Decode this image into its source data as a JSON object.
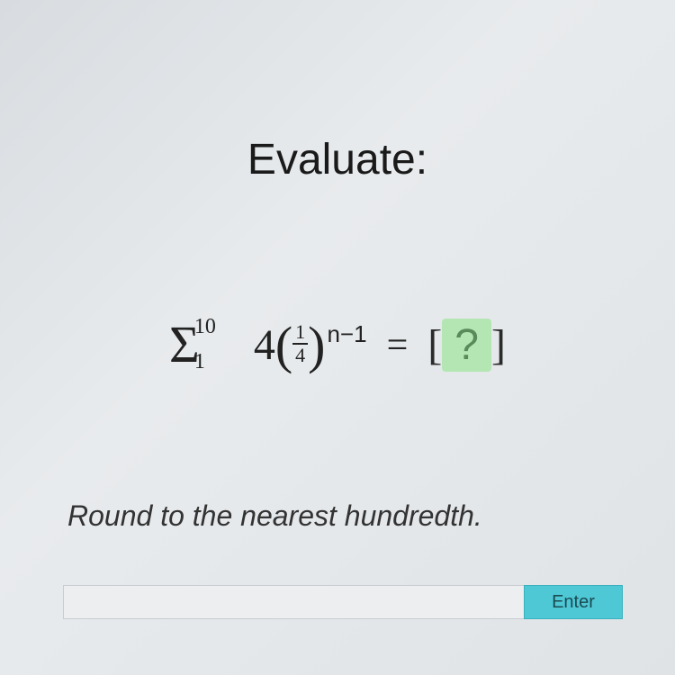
{
  "title": "Evaluate:",
  "formula": {
    "sigma_upper": "10",
    "sigma_lower": "1",
    "coefficient": "4",
    "frac_num": "1",
    "frac_den": "4",
    "exponent": "n−1",
    "equals": "=",
    "answer_placeholder": "[ ? ]",
    "answer_box_bg": "#b3e6b3",
    "answer_box_fg": "#5a8a5a"
  },
  "instruction": "Round to the nearest hundredth.",
  "input": {
    "placeholder": "",
    "value": ""
  },
  "enter_label": "Enter",
  "colors": {
    "background_start": "#d8dce0",
    "background_end": "#dfe3e6",
    "text": "#1a1a1a",
    "enter_bg": "#4fc8d6",
    "enter_fg": "#1a4a52",
    "input_bg": "#eceef0"
  }
}
